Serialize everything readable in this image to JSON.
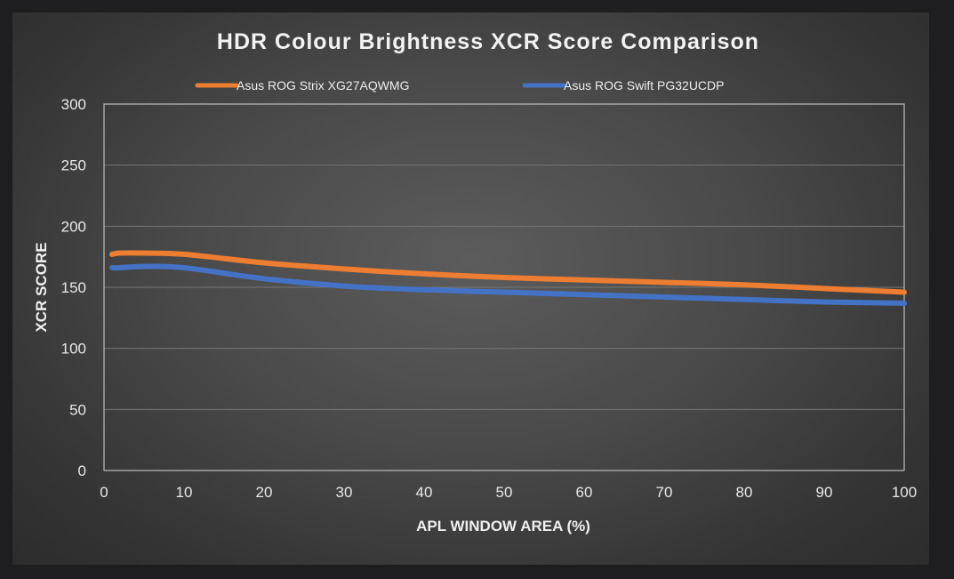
{
  "chart_data": {
    "type": "line",
    "title": "HDR Colour Brightness XCR Score Comparison",
    "xlabel": "APL WINDOW AREA (%)",
    "ylabel": "XCR SCORE",
    "xlim": [
      0,
      100
    ],
    "ylim": [
      0,
      300
    ],
    "x_ticks": [
      "0",
      "10",
      "20",
      "30",
      "40",
      "50",
      "60",
      "70",
      "80",
      "90",
      "100"
    ],
    "y_ticks": [
      "0",
      "50",
      "100",
      "150",
      "200",
      "250",
      "300"
    ],
    "grid": true,
    "legend_position": "top",
    "series": [
      {
        "name": "Asus ROG Strix XG27AQWMG",
        "color": "#ed7d31",
        "x": [
          1,
          2,
          5,
          10,
          20,
          30,
          40,
          50,
          60,
          70,
          80,
          90,
          100
        ],
        "y": [
          177,
          178,
          178,
          177,
          170,
          165,
          161,
          158,
          156,
          154,
          152,
          149,
          146
        ]
      },
      {
        "name": "Asus ROG Swift PG32UCDP",
        "color": "#4472c4",
        "x": [
          1,
          2,
          5,
          10,
          20,
          30,
          40,
          50,
          60,
          70,
          80,
          90,
          100
        ],
        "y": [
          166,
          166,
          167,
          166,
          157,
          151,
          148,
          146,
          144,
          142,
          140,
          138,
          137
        ]
      }
    ]
  }
}
